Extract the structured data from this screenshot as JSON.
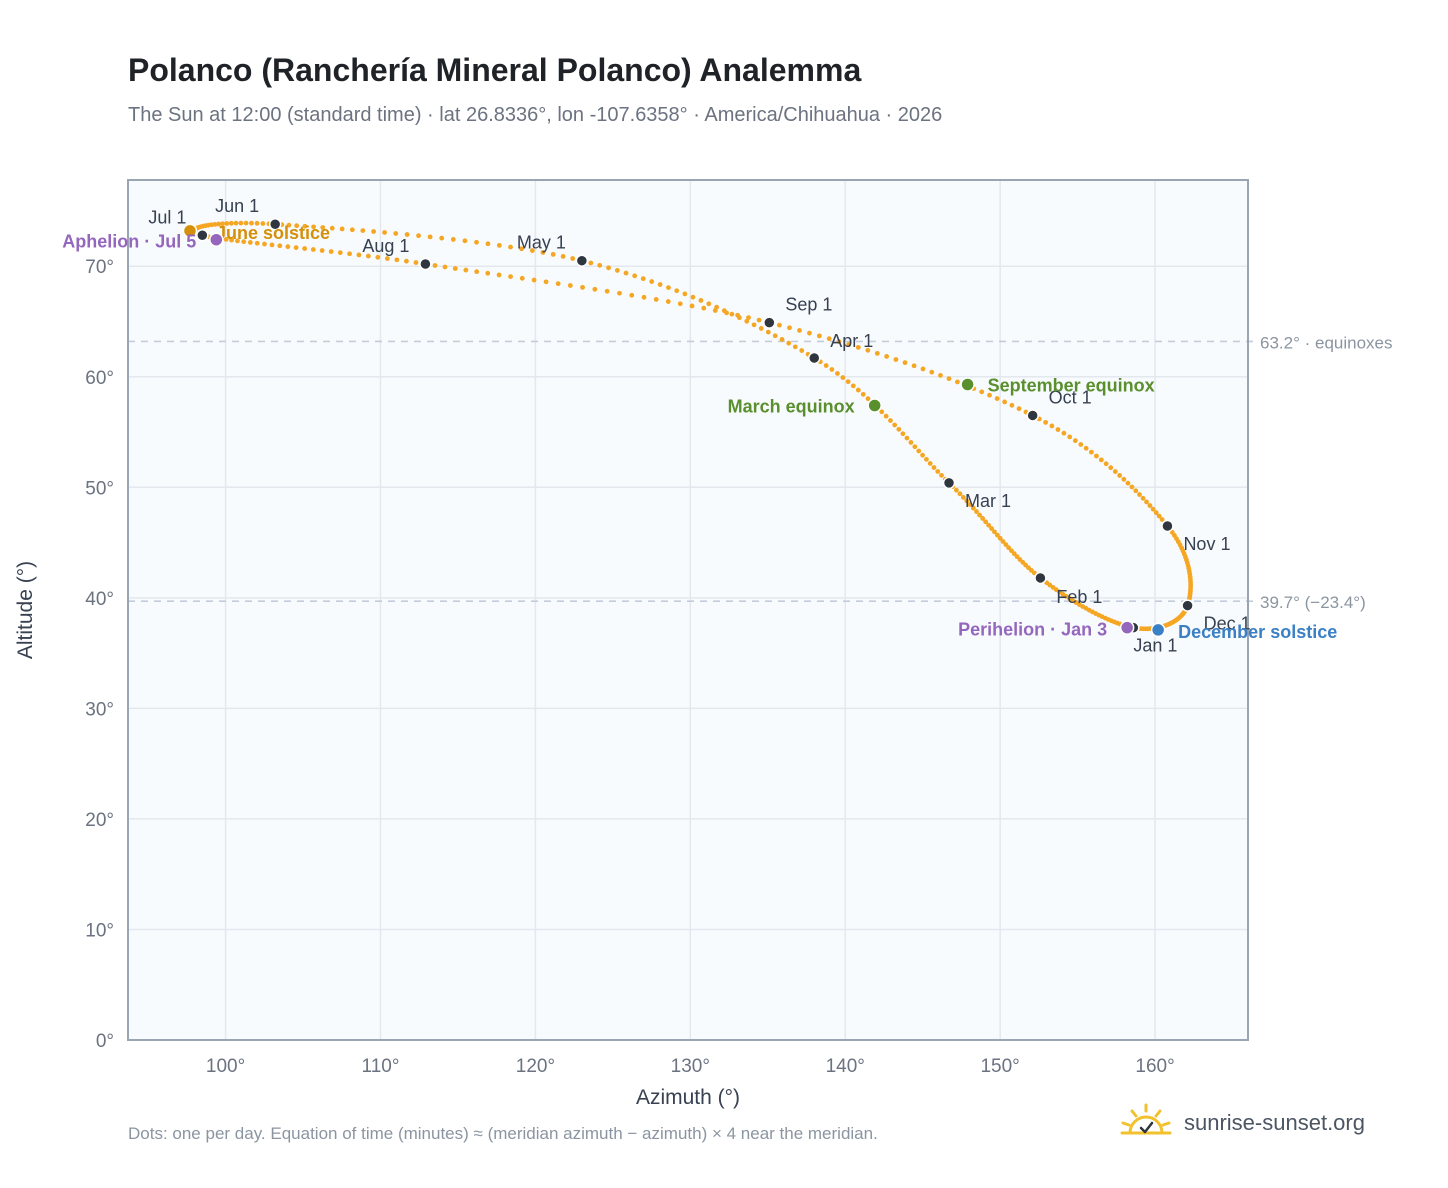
{
  "header": {
    "title": "Polanco (Ranchería Mineral Polanco) Analemma",
    "subtitle": "The Sun at 12:00 (standard time) · lat 26.8336°, lon -107.6358° · America/Chihuahua · 2026"
  },
  "footer": {
    "note": "Dots: one per day. Equation of time (minutes) ≈ (meridian azimuth − azimuth) × 4 near the meridian.",
    "brand": "sunrise-sunset.org"
  },
  "colors": {
    "curve": "#f5a623",
    "month_marker": "#2f3640",
    "equinox": "#5a8f2e",
    "june_solstice": "#d4900a",
    "december_solstice": "#3b7fc4",
    "apsis": "#9467bd",
    "plot_bg": "#f8fbfe",
    "grid": "#e3e8ef",
    "reference_line": "#c3cdd9"
  },
  "chart_data": {
    "type": "scatter",
    "xlabel": "Azimuth (°)",
    "ylabel": "Altitude (°)",
    "xlim": [
      93.7,
      166
    ],
    "ylim": [
      0,
      77.8
    ],
    "x_ticks": [
      100,
      110,
      120,
      130,
      140,
      150,
      160
    ],
    "y_ticks": [
      0,
      10,
      20,
      30,
      40,
      50,
      60,
      70
    ],
    "x_tick_labels": [
      "100°",
      "110°",
      "120°",
      "130°",
      "140°",
      "150°",
      "160°"
    ],
    "y_tick_labels": [
      "0°",
      "10°",
      "20°",
      "30°",
      "40°",
      "50°",
      "60°",
      "70°"
    ],
    "grid": true,
    "reference_lines": [
      {
        "y": 63.2,
        "label": "63.2° · equinoxes"
      },
      {
        "y": 39.7,
        "label": "39.7° (−23.4°)"
      }
    ],
    "series": [
      {
        "points": [
          {
            "label": "Jan 1",
            "x": 158.6,
            "y": 37.3
          },
          {
            "label": "Feb 1",
            "x": 152.6,
            "y": 41.8
          },
          {
            "label": "Mar 1",
            "x": 146.7,
            "y": 50.4
          },
          {
            "label": "Apr 1",
            "x": 138.0,
            "y": 61.7
          },
          {
            "label": "May 1",
            "x": 123.0,
            "y": 70.5
          },
          {
            "label": "Jun 1",
            "x": 103.2,
            "y": 73.8
          },
          {
            "label": "Jul 1",
            "x": 98.5,
            "y": 72.8
          },
          {
            "label": "Aug 1",
            "x": 112.9,
            "y": 70.2
          },
          {
            "label": "Sep 1",
            "x": 135.1,
            "y": 64.9
          },
          {
            "label": "Oct 1",
            "x": 152.1,
            "y": 56.5
          },
          {
            "label": "Nov 1",
            "x": 160.8,
            "y": 46.5
          },
          {
            "label": "Dec 1",
            "x": 162.1,
            "y": 39.3
          }
        ]
      }
    ],
    "events": [
      {
        "label": "March equinox",
        "x": 141.9,
        "y": 57.4
      },
      {
        "label": "June solstice",
        "x": 97.7,
        "y": 73.2
      },
      {
        "label": "September equinox",
        "x": 147.9,
        "y": 59.3
      },
      {
        "label": "December solstice",
        "x": 160.2,
        "y": 37.1
      },
      {
        "label": "Aphelion · Jul 5",
        "x": 99.4,
        "y": 72.4
      },
      {
        "label": "Perihelion · Jan 3",
        "x": 158.2,
        "y": 37.3
      }
    ]
  }
}
